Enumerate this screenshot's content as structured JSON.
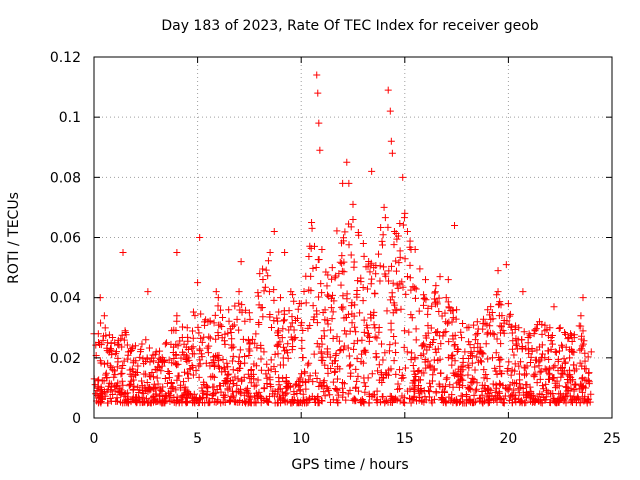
{
  "chart_data": {
    "type": "scatter",
    "title": "Day 183 of 2023, Rate Of TEC Index for receiver geob",
    "xlabel": "GPS time / hours",
    "ylabel": "ROTI / TECUs",
    "xlim": [
      0,
      25
    ],
    "ylim": [
      0,
      0.12
    ],
    "x_ticks": [
      "0",
      "5",
      "10",
      "15",
      "20",
      "25"
    ],
    "y_ticks": [
      "0",
      "0.02",
      "0.04",
      "0.06",
      "0.08",
      "0.1",
      "0.12"
    ],
    "grid": true,
    "marker": "+",
    "color": "#ff0000",
    "series": [
      {
        "x": [
          0.0,
          0.5,
          1.0,
          1.5,
          2.0,
          2.5,
          3.0,
          3.5,
          4.0,
          4.5,
          5.0,
          5.5,
          6.0,
          6.5,
          7.0,
          7.5,
          8.0,
          8.5,
          9.0,
          9.5,
          10.0,
          10.5,
          11.0,
          11.5,
          12.0,
          12.5,
          13.0,
          13.5,
          14.0,
          14.5,
          15.0,
          15.5,
          16.0,
          16.5,
          17.0,
          17.5,
          18.0,
          18.5,
          19.0,
          19.5,
          20.0,
          20.5,
          21.0,
          21.5,
          22.0,
          22.5,
          23.0,
          23.5,
          24.0,
          0.3,
          1.4,
          2.6,
          4.0,
          5.1,
          5.9,
          7.1,
          8.7,
          9.2,
          10.75,
          10.8,
          10.85,
          10.9,
          12.2,
          12.3,
          12.5,
          13.4,
          14.2,
          14.3,
          14.35,
          14.4,
          14.9,
          15.3,
          16.7,
          17.1,
          17.4,
          19.5,
          19.9,
          20.7,
          22.2,
          23.6
        ],
        "y": [
          0.028,
          0.034,
          0.025,
          0.029,
          0.024,
          0.026,
          0.022,
          0.025,
          0.034,
          0.03,
          0.045,
          0.032,
          0.04,
          0.036,
          0.042,
          0.035,
          0.048,
          0.055,
          0.04,
          0.042,
          0.038,
          0.065,
          0.056,
          0.05,
          0.078,
          0.066,
          0.058,
          0.05,
          0.07,
          0.062,
          0.068,
          0.056,
          0.046,
          0.044,
          0.04,
          0.036,
          0.03,
          0.032,
          0.036,
          0.042,
          0.038,
          0.03,
          0.028,
          0.032,
          0.03,
          0.03,
          0.028,
          0.034,
          0.022,
          0.04,
          0.055,
          0.042,
          0.055,
          0.06,
          0.042,
          0.052,
          0.062,
          0.055,
          0.114,
          0.108,
          0.098,
          0.089,
          0.085,
          0.078,
          0.071,
          0.082,
          0.109,
          0.102,
          0.092,
          0.088,
          0.08,
          0.056,
          0.047,
          0.046,
          0.064,
          0.049,
          0.051,
          0.042,
          0.037,
          0.04
        ]
      }
    ]
  }
}
